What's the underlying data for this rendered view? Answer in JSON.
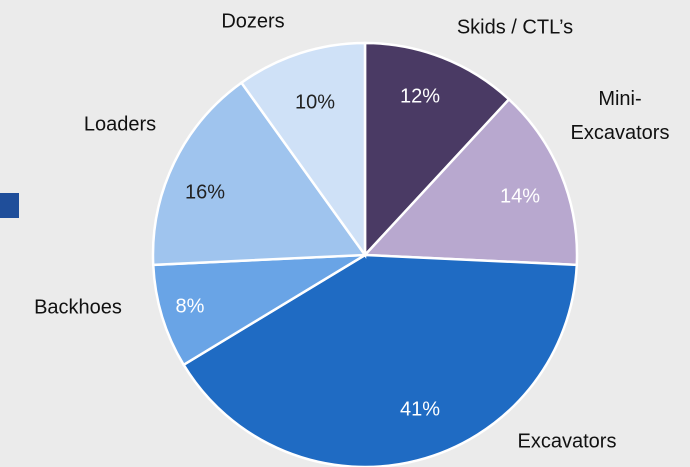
{
  "chart_data": {
    "type": "pie",
    "categories": [
      "Skids / CTL’s",
      "Mini-\nExcavators",
      "Excavators",
      "Backhoes",
      "Loaders",
      "Dozers"
    ],
    "values": [
      12,
      14,
      41,
      8,
      16,
      10
    ],
    "value_labels": [
      "12%",
      "14%",
      "41%",
      "8%",
      "16%",
      "10%"
    ],
    "colors": [
      "#4a3a64",
      "#b8a8cf",
      "#1f6bc3",
      "#69a4e6",
      "#9fc4ee",
      "#cfe1f7"
    ]
  }
}
